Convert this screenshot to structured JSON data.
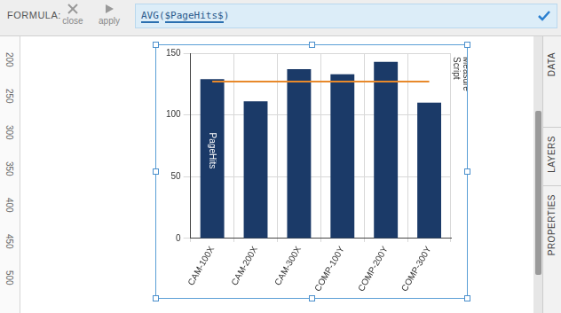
{
  "chart_data": {
    "type": "bar",
    "categories": [
      "CAM-100X",
      "CAM-200X",
      "CAM-300X",
      "COMP-100Y",
      "COMP-200Y",
      "COMP-300Y"
    ],
    "series": [
      {
        "name": "PageHits",
        "type": "bar",
        "color": "#1b3a68",
        "values": [
          129,
          111,
          137,
          133,
          143,
          110
        ]
      },
      {
        "name": "Script Measure",
        "type": "line",
        "color": "#e8892b",
        "values": [
          127,
          127,
          127,
          127,
          127,
          127
        ]
      }
    ],
    "ylim": [
      0,
      150
    ],
    "yticks": [
      0,
      50,
      100,
      150
    ],
    "grid": true
  },
  "ui": {
    "formula_label": "FORMULA:",
    "buttons": [
      "close",
      "apply"
    ],
    "formula": "AVG($PageHits$)",
    "ruler": [
      200,
      250,
      300,
      350,
      400,
      450,
      500
    ],
    "panels": [
      "DATA",
      "LAYERS",
      "PROPERTIES"
    ]
  }
}
